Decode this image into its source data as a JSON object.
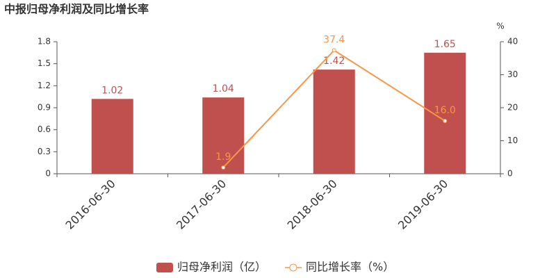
{
  "chart_data": {
    "type": "bar",
    "title": "中报归母净利润及同比增长率",
    "y2_label": "%",
    "categories": [
      "2016-06-30",
      "2017-06-30",
      "2018-06-30",
      "2019-06-30"
    ],
    "series": [
      {
        "name": "归母净利润（亿）",
        "type": "bar",
        "color": "#c0504d",
        "values": [
          1.02,
          1.04,
          1.42,
          1.65
        ]
      },
      {
        "name": "同比增长率（%）",
        "type": "line",
        "axis": "y2",
        "color": "#f79646",
        "values": [
          null,
          1.9,
          37.4,
          16.0
        ],
        "value_labels": [
          null,
          "1.9",
          "37.4",
          "16.0"
        ]
      }
    ],
    "ylim": [
      0,
      1.8
    ],
    "yticks": [
      0,
      0.3,
      0.6,
      0.9,
      1.2,
      1.5,
      1.8
    ],
    "y2lim": [
      0,
      40
    ],
    "y2ticks": [
      0,
      10,
      20,
      30,
      40
    ],
    "grid": false,
    "legend": "bottom"
  }
}
